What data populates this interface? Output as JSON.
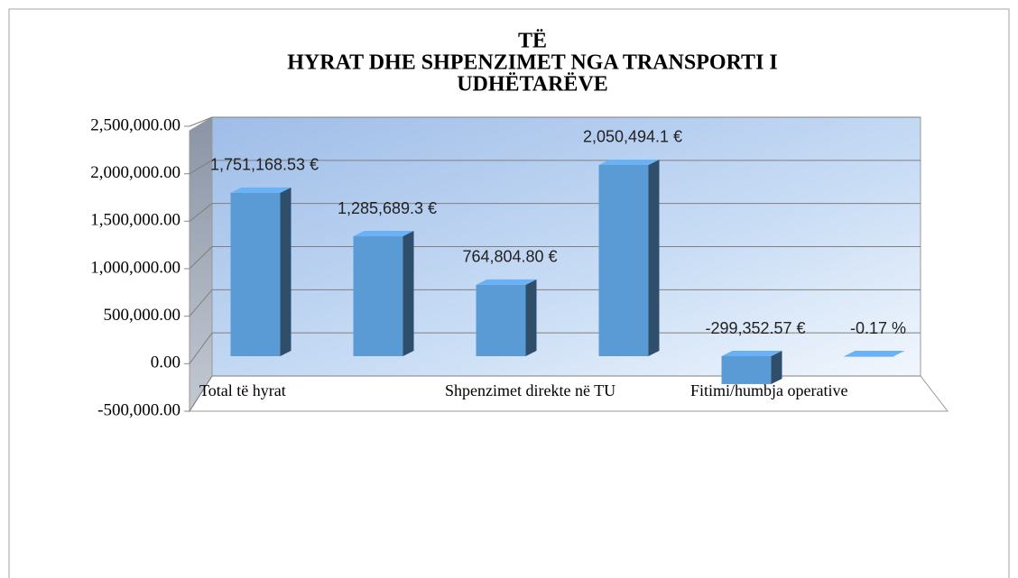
{
  "chart_data": {
    "type": "bar3d",
    "title": [
      "TË",
      "HYRAT DHE SHPENZIMET NGA TRANSPORTI I",
      "UDHËTARËVE"
    ],
    "categories": [
      "Total të hyrat",
      null,
      "Shpenzimet direkte në TU",
      null,
      "Fitimi/humbja operative",
      null
    ],
    "values": [
      1751168.53,
      1285689.3,
      764804.8,
      2050494.1,
      -299352.57,
      -0.17
    ],
    "value_labels": [
      "1,751,168.53 €",
      "1,285,689.3 €",
      "764,804.80 €",
      "2,050,494.1 €",
      "-299,352.57 €",
      "-0.17 %"
    ],
    "color": "#5b9bd5",
    "ylim": [
      -500000,
      2500000
    ],
    "yticks": [
      {
        "value": -500000,
        "label": "-500,000.00"
      },
      {
        "value": 0,
        "label": "0.00"
      },
      {
        "value": 500000,
        "label": "500,000.00"
      },
      {
        "value": 1000000,
        "label": "1,000,000.00"
      },
      {
        "value": 1500000,
        "label": "1,500,000.00"
      },
      {
        "value": 2000000,
        "label": "2,000,000.00"
      },
      {
        "value": 2500000,
        "label": "2,500,000.00"
      }
    ],
    "grid": true
  }
}
